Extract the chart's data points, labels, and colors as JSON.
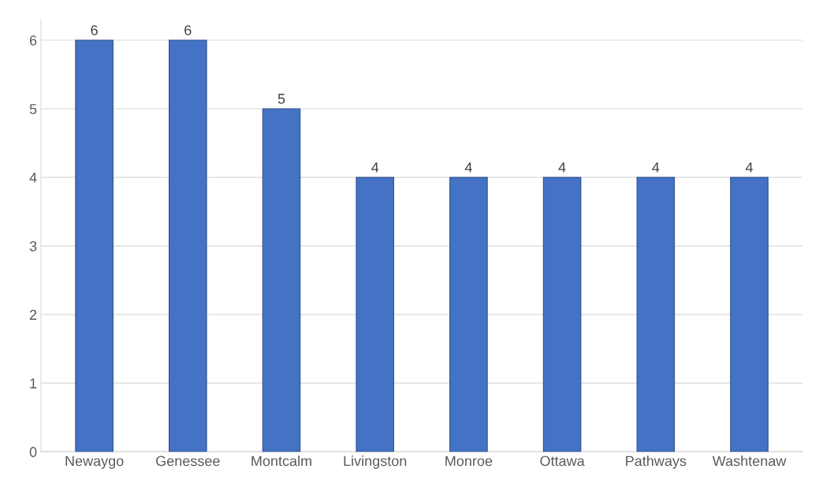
{
  "chart_data": {
    "type": "bar",
    "categories": [
      "Newaygo",
      "Genessee",
      "Montcalm",
      "Livingston",
      "Monroe",
      "Ottawa",
      "Pathways",
      "Washtenaw"
    ],
    "values": [
      6,
      6,
      5,
      4,
      4,
      4,
      4,
      4
    ],
    "color": "#4472c4",
    "ylim": [
      0,
      6.3
    ],
    "yticks": [
      0,
      1,
      2,
      3,
      4,
      5,
      6
    ],
    "grid": "y",
    "data_labels": true
  }
}
